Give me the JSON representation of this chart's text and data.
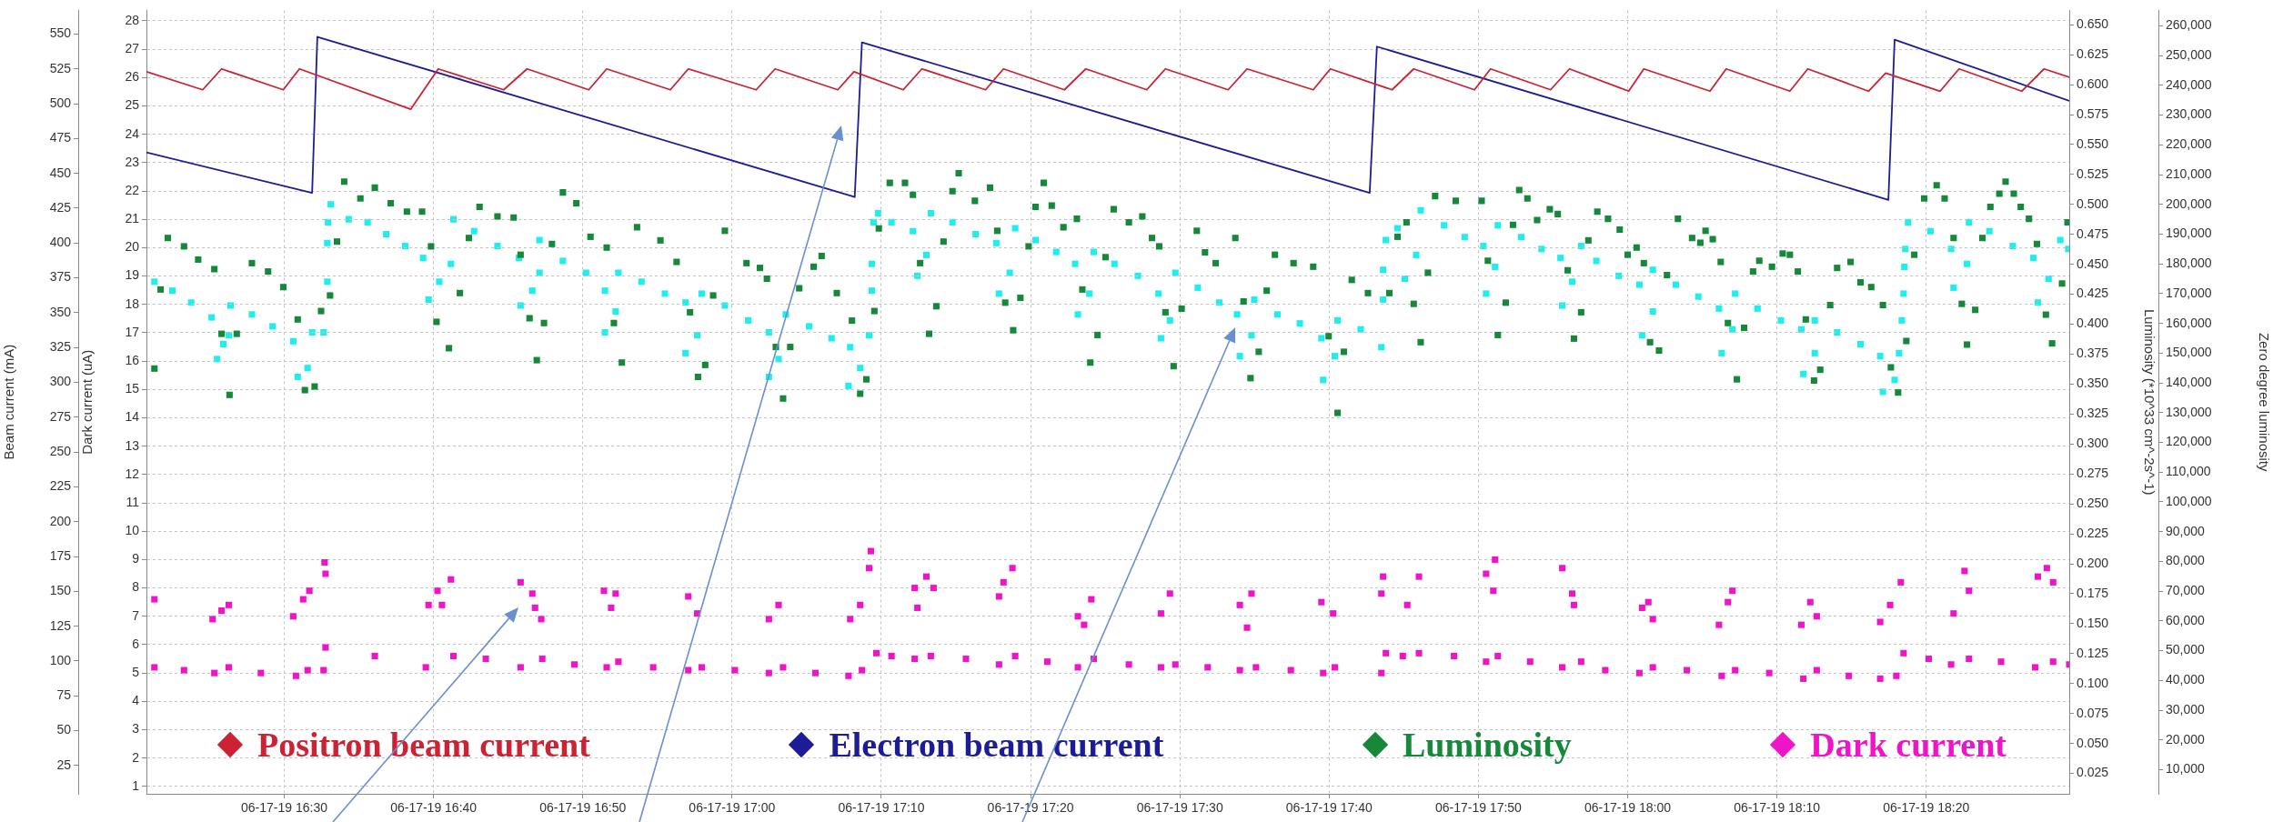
{
  "chart_data": [
    {
      "type": "scatter",
      "marker": "square",
      "grid": true,
      "legend": "bottom",
      "xlim": [
        "--06-17T16:20:46",
        "--06-17T18:29:35"
      ],
      "xticks": [
        {
          "value": "--06-17T16:30",
          "label": "06-17-19 16:30"
        },
        {
          "value": "--06-17T16:40",
          "label": "06-17-19 16:40"
        },
        {
          "value": "--06-17T16:50",
          "label": "06-17-19 16:50"
        },
        {
          "value": "--06-17T17:00",
          "label": "06-17-19 17:00"
        },
        {
          "value": "--06-17T17:10",
          "label": "06-17-19 17:10"
        },
        {
          "value": "--06-17T17:20",
          "label": "06-17-19 17:20"
        },
        {
          "value": "--06-17T17:30",
          "label": "06-17-19 17:30"
        },
        {
          "value": "--06-17T17:40",
          "label": "06-17-19 17:40"
        },
        {
          "value": "--06-17T17:50",
          "label": "06-17-19 17:50"
        },
        {
          "value": "--06-17T18:00",
          "label": "06-17-19 18:00"
        },
        {
          "value": "--06-17T18:10",
          "label": "06-17-19 18:10"
        },
        {
          "value": "--06-17T18:20",
          "label": "06-17-19 18:20"
        }
      ],
      "y3label": "Beam current (mA)",
      "y3lim": [
        4.7,
        567
      ],
      "y3ticks": [
        25,
        50,
        75,
        100,
        125,
        150,
        175,
        200,
        225,
        250,
        275,
        300,
        325,
        350,
        375,
        400,
        425,
        450,
        475,
        500,
        525,
        550
      ],
      "ylabel": "Dark current (uA)",
      "ylim": [
        0.74,
        28.37
      ],
      "yticks": [
        1,
        2,
        3,
        4,
        5,
        6,
        7,
        8,
        9,
        10,
        11,
        12,
        13,
        14,
        15,
        16,
        17,
        18,
        19,
        20,
        21,
        22,
        23,
        24,
        25,
        26,
        27,
        28
      ],
      "y2label": "Luminosity (*10^33 cm^-2s^-1)",
      "y2lim": [
        0.008,
        0.662
      ],
      "y2ticks": [
        0.025,
        {
          "value": 0.05,
          "label": "0.050"
        },
        0.075,
        {
          "value": 0.1,
          "label": "0.100"
        },
        0.125,
        {
          "value": 0.15,
          "label": "0.150"
        },
        0.175,
        {
          "value": 0.2,
          "label": "0.200"
        },
        0.225,
        {
          "value": 0.25,
          "label": "0.250"
        },
        0.275,
        {
          "value": 0.3,
          "label": "0.300"
        },
        0.325,
        {
          "value": 0.35,
          "label": "0.350"
        },
        0.375,
        {
          "value": 0.4,
          "label": "0.400"
        },
        0.425,
        {
          "value": 0.45,
          "label": "0.450"
        },
        0.475,
        {
          "value": 0.5,
          "label": "0.500"
        },
        0.525,
        {
          "value": 0.55,
          "label": "0.550"
        },
        0.575,
        {
          "value": 0.6,
          "label": "0.600"
        },
        0.625,
        {
          "value": 0.65,
          "label": "0.650"
        }
      ],
      "series": [
        {
          "name": "Positron beam current",
          "type": "line",
          "marker": "none",
          "axis": "y3",
          "color": "#cc2233",
          "x": [
            "--06-17T16:20:46",
            "--06-17T16:24:32",
            "--06-17T16:25:48",
            "--06-17T16:29:56",
            "--06-17T16:31:01",
            "--06-17T16:38:28",
            "--06-17T16:40:19",
            "--06-17T16:44:42",
            "--06-17T16:46:16",
            "--06-17T16:50:24",
            "--06-17T16:51:36",
            "--06-17T16:55:52",
            "--06-17T16:57:04",
            "--06-17T17:01:37",
            "--06-17T17:02:53",
            "--06-17T17:07:05",
            "--06-17T17:08:10",
            "--06-17T17:11:28",
            "--06-17T17:12:43",
            "--06-17T17:16:59",
            "--06-17T17:18:11",
            "--06-17T17:22:16",
            "--06-17T17:23:42",
            "--06-17T17:27:47",
            "--06-17T17:29:02",
            "--06-17T17:33:14",
            "--06-17T17:34:30",
            "--06-17T17:38:56",
            "--06-17T17:40:05",
            "--06-17T17:44:13",
            "--06-17T17:45:40",
            "--06-17T17:49:44",
            "--06-17T17:50:49",
            "--06-17T17:54:50",
            "--06-17T17:56:06",
            "--06-17T18:00:04",
            "--06-17T18:01:05",
            "--06-17T18:05:31",
            "--06-17T18:06:36",
            "--06-17T18:10:52",
            "--06-17T18:12:04",
            "--06-17T18:16:08",
            "--06-17T18:17:17",
            "--06-17T18:20:56",
            "--06-17T18:22:12",
            "--06-17T18:26:24",
            "--06-17T18:27:54",
            "--06-17T18:29:35"
          ],
          "values": [
            523,
            510,
            525,
            510,
            525,
            496,
            525,
            510,
            525,
            510,
            525,
            510,
            525,
            510,
            525,
            510,
            523,
            510,
            525,
            510,
            525,
            510,
            525,
            510,
            525,
            510,
            525,
            510,
            525,
            510,
            525,
            510,
            525,
            510,
            525,
            509,
            525,
            509,
            525,
            509,
            525,
            509,
            522,
            509,
            525,
            509,
            525,
            519
          ]
        },
        {
          "name": "Electron beam current",
          "type": "line",
          "marker": "none",
          "axis": "y3",
          "color": "#1c1c96",
          "x": [
            "--06-17T16:20:46",
            "--06-17T16:31:52",
            "--06-17T16:32:13",
            "--06-17T17:08:13",
            "--06-17T17:08:42",
            "--06-17T17:42:43",
            "--06-17T17:43:12",
            "--06-17T18:17:28",
            "--06-17T18:17:53",
            "--06-17T18:29:35"
          ],
          "values": [
            465,
            436,
            548,
            433,
            544,
            436,
            541,
            431,
            546,
            502
          ]
        },
        {
          "name": "Luminosity",
          "axis": "y2",
          "color": "#16883a",
          "x": [
            "--06-17T16:22:12",
            "--06-17T16:23:17",
            "--06-17T16:24:14",
            "--06-17T16:25:19",
            "--06-17T16:21:43",
            "--06-17T16:21:18",
            "--06-17T16:25:48",
            "--06-17T16:26:49",
            "--06-17T16:26:20",
            "--06-17T16:27:50",
            "--06-17T16:28:55",
            "--06-17T16:29:56",
            "--06-17T16:30:54",
            "--06-17T16:31:23",
            "--06-17T16:32:02",
            "--06-17T16:32:28",
            "--06-17T16:33:04",
            "--06-17T16:33:32",
            "--06-17T16:34:01",
            "--06-17T16:35:06",
            "--06-17T16:36:04",
            "--06-17T16:37:08",
            "--06-17T16:38:13",
            "--06-17T16:39:14",
            "--06-17T16:39:50",
            "--06-17T16:40:12",
            "--06-17T16:41:02",
            "--06-17T16:41:46",
            "--06-17T16:42:22",
            "--06-17T16:43:05",
            "--06-17T16:44:17",
            "--06-17T16:45:22",
            "--06-17T16:45:50",
            "--06-17T16:46:26",
            "--06-17T16:46:55",
            "--06-17T16:47:24",
            "--06-17T16:47:56",
            "--06-17T16:48:40",
            "--06-17T16:49:34",
            "--06-17T16:50:31",
            "--06-17T16:51:36",
            "--06-17T16:52:05",
            "--06-17T16:52:37",
            "--06-17T16:53:38",
            "--06-17T16:55:12",
            "--06-17T16:56:17",
            "--06-17T16:57:11",
            "--06-17T16:57:43",
            "--06-17T16:58:12",
            "--06-17T16:58:44",
            "--06-17T16:59:31",
            "--06-17T17:00:58",
            "--06-17T17:01:52",
            "--06-17T17:02:20",
            "--06-17T17:02:56",
            "--06-17T17:03:25",
            "--06-17T17:03:54",
            "--06-17T17:04:30",
            "--06-17T17:05:28",
            "--06-17T17:06:00",
            "--06-17T17:07:01",
            "--06-17T17:08:02",
            "--06-17T17:08:35",
            "--06-17T17:09:00",
            "--06-17T17:09:32",
            "--06-17T17:09:50",
            "--06-17T17:10:34",
            "--06-17T17:11:35",
            "--06-17T17:12:07",
            "--06-17T17:14:46",
            "--06-17T17:15:11",
            "--06-17T17:16:16",
            "--06-17T17:17:17",
            "--06-17T17:12:36",
            "--06-17T17:14:10",
            "--06-17T17:13:41",
            "--06-17T17:13:12",
            "--06-17T17:17:46",
            "--06-17T17:18:18",
            "--06-17T17:18:50",
            "--06-17T17:19:19",
            "--06-17T17:19:52",
            "--06-17T17:20:20",
            "--06-17T17:20:53",
            "--06-17T17:21:25",
            "--06-17T17:22:12",
            "--06-17T17:23:06",
            "--06-17T17:23:28",
            "--06-17T17:24:00",
            "--06-17T17:24:29",
            "--06-17T17:25:01",
            "--06-17T17:25:34",
            "--06-17T17:26:35",
            "--06-17T17:27:29",
            "--06-17T17:28:08",
            "--06-17T17:28:37",
            "--06-17T17:29:02",
            "--06-17T17:29:35",
            "--06-17T17:30:07",
            "--06-17T17:31:08",
            "--06-17T17:31:41",
            "--06-17T17:32:24",
            "--06-17T17:33:43",
            "--06-17T17:34:16",
            "--06-17T17:34:44",
            "--06-17T17:35:17",
            "--06-17T17:35:49",
            "--06-17T17:36:22",
            "--06-17T17:37:37",
            "--06-17T17:38:56",
            "--06-17T17:39:58",
            "--06-17T17:40:34",
            "--06-17T17:40:59",
            "--06-17T17:41:31",
            "--06-17T17:42:36",
            "--06-17T17:44:02",
            "--06-17T17:44:35",
            "--06-17T17:45:11",
            "--06-17T17:45:40",
            "--06-17T17:46:08",
            "--06-17T17:46:37",
            "--06-17T17:47:06",
            "--06-17T17:48:29",
            "--06-17T17:50:13",
            "--06-17T17:50:38",
            "--06-17T17:51:18",
            "--06-17T17:51:50",
            "--06-17T17:52:19",
            "--06-17T17:52:44",
            "--06-17T17:53:17",
            "--06-17T17:53:56",
            "--06-17T17:54:47",
            "--06-17T17:55:19",
            "--06-17T17:55:59",
            "--06-17T17:56:24",
            "--06-17T17:56:53",
            "--06-17T17:57:22",
            "--06-17T17:57:58",
            "--06-17T17:58:41",
            "--06-17T17:59:28",
            "--06-17T18:00:00",
            "--06-17T18:00:36",
            "--06-17T18:01:05",
            "--06-17T18:01:30",
            "--06-17T18:02:06",
            "--06-17T18:02:38",
            "--06-17T18:03:22",
            "--06-17T18:04:19",
            "--06-17T18:04:52",
            "--06-17T18:05:13",
            "--06-17T18:05:42",
            "--06-17T18:06:14",
            "--06-17T18:06:43",
            "--06-17T18:07:19",
            "--06-17T18:07:48",
            "--06-17T18:08:24",
            "--06-17T18:08:49",
            "--06-17T18:09:40",
            "--06-17T18:10:23",
            "--06-17T18:10:52",
            "--06-17T18:11:24",
            "--06-17T18:11:56",
            "--06-17T18:12:29",
            "--06-17T18:12:54",
            "--06-17T18:13:34",
            "--06-17T18:14:02",
            "--06-17T18:14:56",
            "--06-17T18:15:36",
            "--06-17T18:16:19",
            "--06-17T18:17:06",
            "--06-17T18:17:38",
            "--06-17T18:18:07",
            "--06-17T18:18:40",
            "--06-17T18:19:12",
            "--06-17T18:19:52",
            "--06-17T18:20:42",
            "--06-17T18:21:14",
            "--06-17T18:21:50",
            "--06-17T18:22:23",
            "--06-17T18:22:44",
            "--06-17T18:23:17",
            "--06-17T18:23:46",
            "--06-17T18:24:18",
            "--06-17T18:24:54",
            "--06-17T18:25:19",
            "--06-17T18:25:52",
            "--06-17T18:26:20",
            "--06-17T18:26:53",
            "--06-17T18:27:25",
            "--06-17T18:28:01",
            "--06-17T18:28:26",
            "--06-17T18:29:06",
            "--06-17T18:29:28"
          ],
          "values": [
            0.472,
            0.465,
            0.454,
            0.446,
            0.429,
            0.363,
            0.392,
            0.392,
            0.341,
            0.451,
            0.444,
            0.431,
            0.404,
            0.345,
            0.348,
            0.411,
            0.424,
            0.469,
            0.519,
            0.505,
            0.514,
            0.501,
            0.494,
            0.494,
            0.465,
            0.402,
            0.38,
            0.426,
            0.472,
            0.498,
            0.49,
            0.489,
            0.458,
            0.405,
            0.37,
            0.401,
            0.467,
            0.51,
            0.501,
            0.473,
            0.464,
            0.401,
            0.368,
            0.481,
            0.47,
            0.452,
            0.41,
            0.356,
            0.366,
            0.424,
            0.478,
            0.451,
            0.447,
            0.438,
            0.381,
            0.338,
            0.381,
            0.43,
            0.448,
            0.457,
            0.426,
            0.403,
            0.342,
            0.354,
            0.411,
            0.48,
            0.518,
            0.518,
            0.508,
            0.511,
            0.526,
            0.503,
            0.514,
            0.451,
            0.469,
            0.415,
            0.392,
            0.478,
            0.418,
            0.395,
            0.422,
            0.465,
            0.498,
            0.518,
            0.499,
            0.481,
            0.488,
            0.429,
            0.368,
            0.391,
            0.456,
            0.496,
            0.485,
            0.49,
            0.472,
            0.465,
            0.41,
            0.365,
            0.413,
            0.478,
            0.46,
            0.451,
            0.472,
            0.419,
            0.355,
            0.377,
            0.428,
            0.458,
            0.451,
            0.448,
            0.39,
            0.326,
            0.377,
            0.437,
            0.426,
            0.426,
            0.473,
            0.485,
            0.417,
            0.385,
            0.443,
            0.507,
            0.503,
            0.503,
            0.453,
            0.391,
            0.418,
            0.483,
            0.512,
            0.505,
            0.487,
            0.496,
            0.492,
            0.445,
            0.388,
            0.41,
            0.47,
            0.494,
            0.488,
            0.479,
            0.458,
            0.464,
            0.451,
            0.385,
            0.378,
            0.441,
            0.488,
            0.472,
            0.468,
            0.478,
            0.471,
            0.452,
            0.401,
            0.354,
            0.397,
            0.444,
            0.453,
            0.448,
            0.459,
            0.458,
            0.444,
            0.404,
            0.353,
            0.362,
            0.416,
            0.447,
            0.452,
            0.435,
            0.431,
            0.416,
            0.364,
            0.343,
            0.386,
            0.458,
            0.505,
            0.516,
            0.505,
            0.472,
            0.417,
            0.383,
            0.412,
            0.472,
            0.498,
            0.509,
            0.519,
            0.509,
            0.498,
            0.488,
            0.467,
            0.408,
            0.384,
            0.434,
            0.485
          ]
        },
        {
          "name": "Dark current",
          "color": "#f014c8",
          "x": [
            "--06-17T16:21:18",
            "--06-17T16:23:17",
            "--06-17T16:25:19",
            "--06-17T16:26:17",
            "--06-17T16:28:26",
            "--06-17T16:30:47",
            "--06-17T16:31:34",
            "--06-17T16:32:38",
            "--06-17T16:32:46",
            "--06-17T16:36:04",
            "--06-17T16:39:29",
            "--06-17T16:41:20",
            "--06-17T16:43:30",
            "--06-17T16:45:50",
            "--06-17T16:47:17",
            "--06-17T16:49:26",
            "--06-17T16:51:36",
            "--06-17T16:52:23",
            "--06-17T16:54:43",
            "--06-17T16:57:04",
            "--06-17T16:57:58",
            "--06-17T17:00:11",
            "--06-17T17:02:28",
            "--06-17T17:03:25",
            "--06-17T17:05:35",
            "--06-17T17:07:48",
            "--06-17T17:08:42",
            "--06-17T17:09:40",
            "--06-17T16:21:18",
            "--06-17T16:25:12",
            "--06-17T16:25:48",
            "--06-17T16:26:17",
            "--06-17T16:30:36",
            "--06-17T16:31:16",
            "--06-17T16:31:41",
            "--06-17T16:32:42",
            "--06-17T16:32:46",
            "--06-17T16:39:40",
            "--06-17T16:40:16",
            "--06-17T16:41:10",
            "--06-17T16:40:34",
            "--06-17T16:45:50",
            "--06-17T16:46:37",
            "--06-17T16:46:48",
            "--06-17T16:47:13",
            "--06-17T16:51:25",
            "--06-17T16:52:12",
            "--06-17T16:51:54",
            "--06-17T16:57:04",
            "--06-17T16:57:40",
            "--06-17T17:02:28",
            "--06-17T17:03:07",
            "--06-17T17:07:55",
            "--06-17T17:08:35",
            "--06-17T17:09:11",
            "--06-17T17:09:18",
            "--06-17T17:10:41",
            "--06-17T17:12:14",
            "--06-17T17:13:19",
            "--06-17T17:15:40",
            "--06-17T17:17:53",
            "--06-17T17:18:58",
            "--06-17T17:21:07",
            "--06-17T17:23:10",
            "--06-17T17:24:14",
            "--06-17T17:26:35",
            "--06-17T17:28:44",
            "--06-17T17:29:42",
            "--06-17T17:31:52",
            "--06-17T17:34:01",
            "--06-17T17:35:06",
            "--06-17T17:37:26",
            "--06-17T17:39:36",
            "--06-17T17:40:23",
            "--06-17T17:43:30",
            "--06-17T17:43:48",
            "--06-17T17:44:56",
            "--06-17T17:46:01",
            "--06-17T17:48:22",
            "--06-17T17:50:31",
            "--06-17T17:51:18",
            "--06-17T17:53:28",
            "--06-17T17:55:37",
            "--06-17T17:56:53",
            "--06-17T17:12:14",
            "--06-17T17:13:01",
            "--06-17T17:13:30",
            "--06-17T17:12:25",
            "--06-17T17:17:53",
            "--06-17T17:18:11",
            "--06-17T17:18:47",
            "--06-17T17:23:10",
            "--06-17T17:24:04",
            "--06-17T17:23:35",
            "--06-17T17:28:44",
            "--06-17T17:29:20",
            "--06-17T17:34:01",
            "--06-17T17:34:48",
            "--06-17T17:34:30",
            "--06-17T17:39:29",
            "--06-17T17:40:16",
            "--06-17T17:43:30",
            "--06-17T17:43:37",
            "--06-17T17:45:14",
            "--06-17T17:46:01",
            "--06-17T17:50:31",
            "--06-17T17:51:07",
            "--06-17T17:51:00",
            "--06-17T17:55:37",
            "--06-17T17:56:17",
            "--06-17T17:56:24",
            "--06-17T17:58:30",
            "--06-17T18:00:47",
            "--06-17T18:01:41",
            "--06-17T18:03:58",
            "--06-17T18:06:18",
            "--06-17T18:07:12",
            "--06-17T18:09:29",
            "--06-17T18:11:46",
            "--06-17T18:12:40",
            "--06-17T18:14:49",
            "--06-17T18:16:55",
            "--06-17T18:18:00",
            "--06-17T18:18:29",
            "--06-17T18:20:10",
            "--06-17T18:21:40",
            "--06-17T18:22:52",
            "--06-17T18:25:01",
            "--06-17T18:27:18",
            "--06-17T18:28:30",
            "--06-17T18:29:35",
            "--06-17T18:00:58",
            "--06-17T18:01:23",
            "--06-17T18:01:41",
            "--06-17T18:06:07",
            "--06-17T18:06:43",
            "--06-17T18:07:01",
            "--06-17T18:11:38",
            "--06-17T18:12:14",
            "--06-17T18:12:40",
            "--06-17T18:16:55",
            "--06-17T18:17:35",
            "--06-17T18:18:18",
            "--06-17T18:21:50",
            "--06-17T18:22:34",
            "--06-17T18:22:52",
            "--06-17T18:27:29",
            "--06-17T18:28:05",
            "--06-17T18:28:30"
          ],
          "values": [
            5.2,
            5.1,
            5.0,
            5.2,
            5.0,
            4.9,
            5.1,
            5.1,
            5.9,
            5.6,
            5.2,
            5.6,
            5.5,
            5.2,
            5.5,
            5.3,
            5.2,
            5.4,
            5.2,
            5.1,
            5.2,
            5.1,
            5.0,
            5.2,
            5.0,
            4.9,
            5.1,
            5.7,
            7.6,
            6.9,
            7.2,
            7.4,
            7.0,
            7.6,
            7.9,
            8.9,
            8.5,
            7.4,
            7.9,
            8.3,
            7.4,
            8.2,
            7.8,
            7.3,
            6.9,
            7.9,
            7.8,
            7.3,
            7.7,
            7.1,
            6.9,
            7.4,
            6.9,
            7.4,
            8.7,
            9.3,
            5.6,
            5.5,
            5.6,
            5.5,
            5.3,
            5.6,
            5.4,
            5.2,
            5.5,
            5.3,
            5.2,
            5.3,
            5.2,
            5.1,
            5.2,
            5.1,
            5.0,
            5.2,
            5.0,
            5.7,
            5.6,
            5.7,
            5.6,
            5.4,
            5.6,
            5.4,
            5.2,
            5.4,
            8.0,
            8.4,
            8.0,
            7.3,
            7.7,
            8.2,
            8.7,
            7.0,
            7.6,
            6.7,
            7.1,
            7.8,
            7.4,
            7.8,
            6.6,
            7.5,
            7.1,
            7.8,
            8.4,
            7.4,
            8.4,
            8.5,
            9.0,
            7.9,
            8.7,
            7.8,
            7.4,
            5.1,
            5.0,
            5.2,
            5.1,
            4.9,
            5.1,
            5.0,
            4.8,
            5.1,
            4.9,
            4.8,
            4.9,
            5.7,
            5.5,
            5.3,
            5.5,
            5.4,
            5.2,
            5.4,
            5.3,
            7.3,
            7.5,
            6.9,
            6.7,
            7.5,
            7.9,
            6.7,
            7.5,
            7.0,
            6.8,
            7.4,
            8.2,
            7.1,
            8.6,
            7.9,
            8.4,
            8.7,
            8.2
          ]
        }
      ]
    },
    {
      "type": "scatter",
      "marker": "square",
      "tick_labels": "y",
      "xlim": [
        "--06-17T16:20:46",
        "--06-17T18:29:35"
      ],
      "ylabel": "Zero degree luminosity",
      "ylim": [
        1900,
        265200
      ],
      "yticks": [
        {
          "value": 10000,
          "label": "10,000"
        },
        {
          "value": 20000,
          "label": "20,000"
        },
        {
          "value": 30000,
          "label": "30,000"
        },
        {
          "value": 40000,
          "label": "40,000"
        },
        {
          "value": 50000,
          "label": "50,000"
        },
        {
          "value": 60000,
          "label": "60,000"
        },
        {
          "value": 70000,
          "label": "70,000"
        },
        {
          "value": 80000,
          "label": "80,000"
        },
        {
          "value": 90000,
          "label": "90,000"
        },
        {
          "value": 100000,
          "label": "100,000"
        },
        {
          "value": 110000,
          "label": "110,000"
        },
        {
          "value": 120000,
          "label": "120,000"
        },
        {
          "value": 130000,
          "label": "130,000"
        },
        {
          "value": 140000,
          "label": "140,000"
        },
        {
          "value": 150000,
          "label": "150,000"
        },
        {
          "value": 160000,
          "label": "160,000"
        },
        {
          "value": 170000,
          "label": "170,000"
        },
        {
          "value": 180000,
          "label": "180,000"
        },
        {
          "value": 190000,
          "label": "190,000"
        },
        {
          "value": 200000,
          "label": "200,000"
        },
        {
          "value": 210000,
          "label": "210,000"
        },
        {
          "value": 220000,
          "label": "220,000"
        },
        {
          "value": 230000,
          "label": "230,000"
        },
        {
          "value": 240000,
          "label": "240,000"
        },
        {
          "value": 250000,
          "label": "250,000"
        },
        {
          "value": 260000,
          "label": "260,000"
        }
      ],
      "series": [
        {
          "color": "#1eeeee",
          "x": [
            "--06-17T16:21:18",
            "--06-17T16:22:30",
            "--06-17T16:23:46",
            "--06-17T16:25:08",
            "--06-17T16:25:30",
            "--06-17T16:25:55",
            "--06-17T16:26:17",
            "--06-17T16:26:24",
            "--06-17T16:27:50",
            "--06-17T16:29:13",
            "--06-17T16:30:36",
            "--06-17T16:30:54",
            "--06-17T16:31:34",
            "--06-17T16:31:52",
            "--06-17T16:32:38",
            "--06-17T16:32:53",
            "--06-17T16:32:53",
            "--06-17T16:32:56",
            "--06-17T16:33:07",
            "--06-17T16:34:19",
            "--06-17T16:35:35",
            "--06-17T16:36:50",
            "--06-17T16:38:06",
            "--06-17T16:39:18",
            "--06-17T16:39:40",
            "--06-17T16:40:23",
            "--06-17T16:41:10",
            "--06-17T16:41:20",
            "--06-17T16:42:43",
            "--06-17T16:44:17",
            "--06-17T16:45:43",
            "--06-17T16:45:50",
            "--06-17T16:46:37",
            "--06-17T16:47:06",
            "--06-17T16:47:06",
            "--06-17T16:48:40",
            "--06-17T16:50:13",
            "--06-17T16:51:29",
            "--06-17T16:51:29",
            "--06-17T16:52:12",
            "--06-17T16:52:23",
            "--06-17T16:53:56",
            "--06-17T16:55:30",
            "--06-17T16:56:53",
            "--06-17T16:56:53",
            "--06-17T16:57:40",
            "--06-17T16:57:58",
            "--06-17T16:59:31",
            "--06-17T17:01:05",
            "--06-17T17:02:28",
            "--06-17T17:02:28",
            "--06-17T17:03:07",
            "--06-17T17:03:36",
            "--06-17T17:05:10",
            "--06-17T17:06:40",
            "--06-17T17:07:55",
            "--06-17T17:07:48",
            "--06-17T17:08:35",
            "--06-17T17:09:11",
            "--06-17T17:09:22",
            "--06-17T17:09:22",
            "--06-17T17:09:29",
            "--06-17T17:09:47",
            "--06-17T17:10:41",
            "--06-17T17:12:07",
            "--06-17T17:12:25",
            "--06-17T17:13:01",
            "--06-17T17:13:19",
            "--06-17T17:14:46",
            "--06-17T17:16:19",
            "--06-17T17:17:42",
            "--06-17T17:17:53",
            "--06-17T17:18:36",
            "--06-17T17:18:58",
            "--06-17T17:20:20",
            "--06-17T17:21:43",
            "--06-17T17:22:59",
            "--06-17T17:23:10",
            "--06-17T17:23:56",
            "--06-17T17:24:14",
            "--06-17T17:25:37",
            "--06-17T17:27:11",
            "--06-17T17:28:34",
            "--06-17T17:28:44",
            "--06-17T17:29:20",
            "--06-17T17:29:42",
            "--06-17T17:31:12",
            "--06-17T17:32:38",
            "--06-17T17:33:50",
            "--06-17T17:34:01",
            "--06-17T17:34:48",
            "--06-17T17:34:59",
            "--06-17T17:36:32",
            "--06-17T17:38:02",
            "--06-17T17:39:29",
            "--06-17T17:39:36",
            "--06-17T17:40:23",
            "--06-17T17:40:34",
            "--06-17T17:42:07",
            "--06-17T17:43:30",
            "--06-17T17:43:37",
            "--06-17T17:43:37",
            "--06-17T17:43:48",
            "--06-17T17:44:35",
            "--06-17T17:45:04",
            "--06-17T17:45:50",
            "--06-17T17:46:08",
            "--06-17T17:47:42",
            "--06-17T17:49:05",
            "--06-17T17:50:20",
            "--06-17T17:50:31",
            "--06-17T17:51:07",
            "--06-17T17:51:18",
            "--06-17T17:52:52",
            "--06-17T17:54:14",
            "--06-17T17:55:30",
            "--06-17T17:55:37",
            "--06-17T17:56:17",
            "--06-17T17:56:53",
            "--06-17T17:57:54",
            "--06-17T17:59:24",
            "--06-17T18:00:47",
            "--06-17T18:00:58",
            "--06-17T18:01:41",
            "--06-17T18:01:41",
            "--06-17T18:03:14",
            "--06-17T18:04:44",
            "--06-17T18:06:07",
            "--06-17T18:06:18",
            "--06-17T18:07:01",
            "--06-17T18:07:12",
            "--06-17T18:08:42",
            "--06-17T18:10:16",
            "--06-17T18:11:38",
            "--06-17T18:11:46",
            "--06-17T18:12:32",
            "--06-17T18:12:32",
            "--06-17T18:14:02",
            "--06-17T18:15:36",
            "--06-17T18:16:55",
            "--06-17T18:17:06",
            "--06-17T18:17:53",
            "--06-17T18:18:11",
            "--06-17T18:18:22",
            "--06-17T18:18:29",
            "--06-17T18:18:32",
            "--06-17T18:18:36",
            "--06-17T18:18:47",
            "--06-17T18:20:17",
            "--06-17T18:21:40",
            "--06-17T18:21:50",
            "--06-17T18:22:44",
            "--06-17T18:22:52",
            "--06-17T18:24:14",
            "--06-17T18:25:48",
            "--06-17T18:27:11",
            "--06-17T18:27:29",
            "--06-17T18:28:12",
            "--06-17T18:28:59",
            "--06-17T18:29:31"
          ],
          "values": [
            174000,
            171000,
            167000,
            162000,
            148000,
            153000,
            156000,
            166000,
            163000,
            159000,
            154000,
            142000,
            145000,
            157000,
            157000,
            174000,
            187000,
            194000,
            200000,
            195000,
            194000,
            190000,
            186000,
            182000,
            168000,
            174000,
            180000,
            195000,
            191000,
            186000,
            182000,
            166000,
            171000,
            177000,
            188000,
            181000,
            177000,
            171000,
            157000,
            164000,
            177000,
            174000,
            170000,
            167000,
            150000,
            156000,
            170000,
            166000,
            161000,
            157000,
            142000,
            148000,
            163000,
            159000,
            155000,
            152000,
            139000,
            145000,
            156000,
            171000,
            180000,
            194000,
            197000,
            194000,
            191000,
            176000,
            183000,
            197000,
            194000,
            190000,
            187000,
            170000,
            177000,
            192000,
            188000,
            184000,
            180000,
            163000,
            170000,
            184000,
            180000,
            176000,
            170000,
            155000,
            161000,
            177000,
            172000,
            167000,
            163000,
            149000,
            156000,
            168000,
            163000,
            160000,
            155000,
            141000,
            149000,
            161000,
            158000,
            152000,
            168000,
            178000,
            188000,
            192000,
            175000,
            183000,
            198000,
            193000,
            189000,
            186000,
            170000,
            179000,
            193000,
            189000,
            185000,
            182000,
            166000,
            174000,
            186000,
            181000,
            176000,
            173000,
            156000,
            164000,
            178000,
            173000,
            169000,
            165000,
            150000,
            158000,
            170000,
            165000,
            161000,
            158000,
            143000,
            150000,
            161000,
            157000,
            153000,
            149000,
            137000,
            141000,
            150000,
            161000,
            170000,
            179000,
            185000,
            194000,
            191000,
            185000,
            172000,
            180000,
            194000,
            191000,
            186000,
            182000,
            167000,
            175000,
            188000,
            185000
          ]
        }
      ]
    }
  ]
}
